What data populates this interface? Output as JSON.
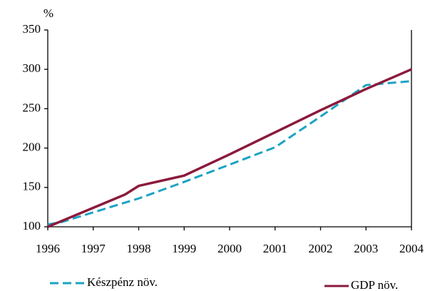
{
  "chart_data": {
    "type": "line",
    "y_unit": "%",
    "series": [
      {
        "name": "Készpénz növ.",
        "color": "#1ba3c4",
        "dash": true,
        "x": [
          1996,
          1996.3,
          1998,
          1999,
          2000,
          2001,
          2002,
          2003,
          2004
        ],
        "values": [
          103,
          106,
          136,
          157,
          179,
          201,
          240,
          280,
          285
        ]
      },
      {
        "name": "GDP növ.",
        "color": "#8b1a3c",
        "dash": false,
        "x": [
          1996,
          1997.7,
          1998,
          1999,
          2000,
          2001,
          2002,
          2003,
          2004
        ],
        "values": [
          100,
          141,
          152,
          165,
          192,
          220,
          248,
          275,
          300
        ]
      }
    ],
    "xlim": [
      1996,
      2004
    ],
    "xticks": [
      1996,
      1997,
      1998,
      1999,
      2000,
      2001,
      2002,
      2003,
      2004
    ],
    "ylim": [
      100,
      350
    ],
    "yticks": [
      100,
      150,
      200,
      250,
      300,
      350
    ],
    "grid": false
  }
}
